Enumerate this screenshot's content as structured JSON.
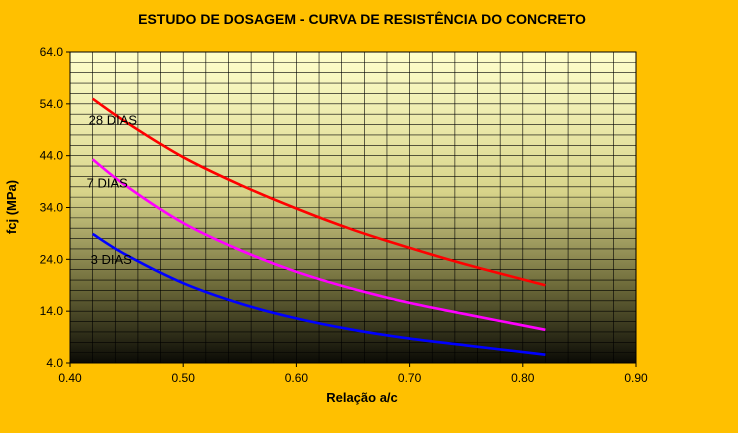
{
  "chart_data": {
    "type": "line",
    "title": "ESTUDO DE DOSAGEM - CURVA DE RESISTÊNCIA DO CONCRETO",
    "xlabel": "Relação a/c",
    "ylabel": "fcj (MPa)",
    "xlim": [
      0.4,
      0.9
    ],
    "ylim": [
      4.0,
      64.0
    ],
    "x_ticks": [
      "0.40",
      "0.50",
      "0.60",
      "0.70",
      "0.80",
      "0.90"
    ],
    "y_ticks": [
      "4.0",
      "14.0",
      "24.0",
      "34.0",
      "44.0",
      "54.0",
      "64.0"
    ],
    "grid": true,
    "background": "gradient light-yellow to black",
    "x": [
      0.42,
      0.45,
      0.5,
      0.55,
      0.6,
      0.65,
      0.7,
      0.75,
      0.82
    ],
    "series": [
      {
        "name": "28 DIAS",
        "color": "#FF0000",
        "values": [
          55.0,
          50.4,
          43.7,
          38.4,
          33.8,
          29.7,
          26.2,
          23.0,
          19.0
        ]
      },
      {
        "name": "7 DIAS",
        "color": "#FF00FF",
        "values": [
          43.3,
          38.1,
          31.0,
          25.8,
          21.6,
          18.3,
          15.6,
          13.4,
          10.4
        ]
      },
      {
        "name": "3 DIAS",
        "color": "#0000FF",
        "values": [
          28.9,
          24.8,
          19.4,
          15.5,
          12.6,
          10.4,
          8.7,
          7.4,
          5.6
        ]
      }
    ]
  }
}
